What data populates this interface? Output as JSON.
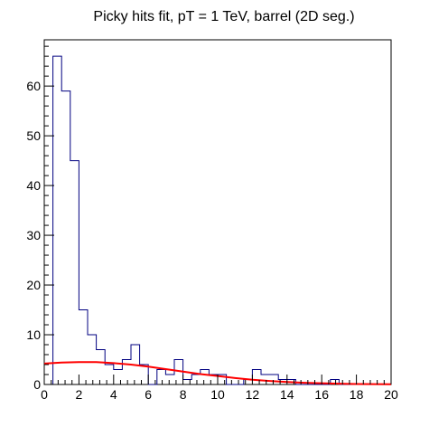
{
  "chart_data": {
    "type": "histogram",
    "title": "Picky hits fit, pT = 1 TeV, barrel (2D seg.)",
    "xlabel": "",
    "ylabel": "",
    "xlim": [
      0,
      20
    ],
    "ylim": [
      0,
      69.3
    ],
    "bin_width": 0.5,
    "x_ticks": [
      0,
      2,
      4,
      6,
      8,
      10,
      12,
      14,
      16,
      18,
      20
    ],
    "x_tick_labels": [
      "0",
      "2",
      "4",
      "6",
      "8",
      "10",
      "12",
      "14",
      "16",
      "18",
      "20"
    ],
    "y_ticks": [
      0,
      10,
      20,
      30,
      40,
      50,
      60
    ],
    "y_tick_labels": [
      "0",
      "10",
      "20",
      "30",
      "40",
      "50",
      "60"
    ],
    "grid": false,
    "legend": "none",
    "series": [
      {
        "kind": "histogram",
        "color": "#000080",
        "bin_edges_start": 0,
        "values": [
          0,
          66,
          59,
          45,
          15,
          10,
          7,
          4,
          3,
          5,
          8,
          4,
          0,
          3,
          2,
          5,
          1,
          2,
          3,
          2,
          2,
          0,
          0,
          1,
          3,
          2,
          2,
          1,
          1,
          0,
          0,
          0,
          0,
          1,
          0,
          0,
          0,
          0,
          0,
          0
        ]
      },
      {
        "kind": "fit",
        "color": "#ff0000",
        "x": [
          0,
          1,
          2,
          3,
          4,
          5,
          6,
          7,
          8,
          9,
          10,
          11,
          12,
          13,
          14,
          15,
          16,
          17,
          18,
          19,
          20
        ],
        "y": [
          4.2,
          4.4,
          4.5,
          4.5,
          4.3,
          4.0,
          3.6,
          3.1,
          2.6,
          2.1,
          1.7,
          1.3,
          0.95,
          0.7,
          0.5,
          0.35,
          0.24,
          0.16,
          0.1,
          0.06,
          0.04
        ]
      }
    ]
  }
}
